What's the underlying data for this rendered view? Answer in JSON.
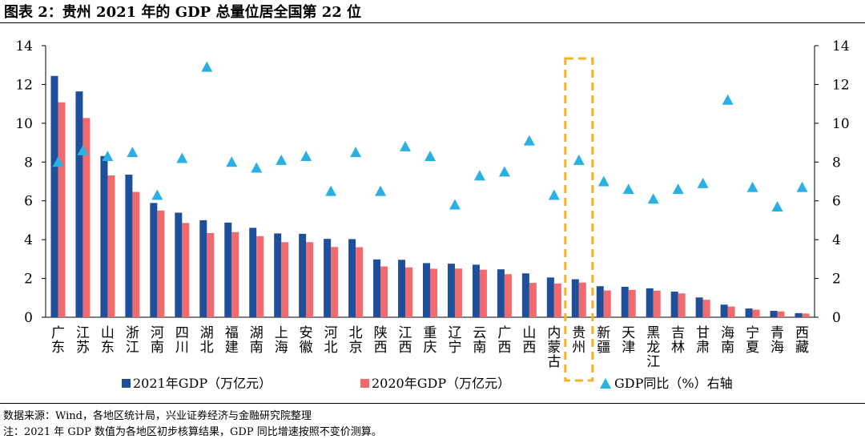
{
  "title": "图表 2：贵州 2021 年的 GDP 总量位居全国第 22 位",
  "source_text": "数据来源：Wind，各地区统计局，兴业证券经济与金融研究院整理",
  "note_text": "注：2021 年 GDP 数值为各地区初步核算结果，GDP 同比增速按照不变价测算。",
  "colors": {
    "gdp2021": "#1F4E9A",
    "gdp2020": "#F06A6E",
    "growth": "#2AB0E3",
    "highlight": "#F5B323"
  },
  "chart_data": {
    "type": "bar",
    "categories": [
      "广东",
      "江苏",
      "山东",
      "浙江",
      "河南",
      "四川",
      "湖北",
      "福建",
      "湖南",
      "上海",
      "安徽",
      "河北",
      "北京",
      "陕西",
      "江西",
      "重庆",
      "辽宁",
      "云南",
      "广西",
      "山西",
      "内蒙古",
      "贵州",
      "新疆",
      "天津",
      "黑龙江",
      "吉林",
      "甘肃",
      "海南",
      "宁夏",
      "青海",
      "西藏"
    ],
    "highlight_category": "贵州",
    "series": [
      {
        "name": "2021年GDP（万亿元）",
        "type": "bar",
        "axis": "left",
        "values": [
          12.44,
          11.64,
          8.31,
          7.35,
          5.89,
          5.39,
          5.0,
          4.88,
          4.61,
          4.32,
          4.3,
          4.04,
          4.03,
          2.98,
          2.96,
          2.79,
          2.76,
          2.71,
          2.47,
          2.26,
          2.05,
          1.96,
          1.6,
          1.57,
          1.49,
          1.32,
          1.02,
          0.65,
          0.45,
          0.33,
          0.21
        ]
      },
      {
        "name": "2020年GDP（万亿元）",
        "type": "bar",
        "axis": "left",
        "values": [
          11.08,
          10.27,
          7.31,
          6.46,
          5.5,
          4.86,
          4.34,
          4.39,
          4.18,
          3.87,
          3.87,
          3.62,
          3.61,
          2.62,
          2.57,
          2.5,
          2.51,
          2.45,
          2.22,
          1.77,
          1.74,
          1.79,
          1.38,
          1.41,
          1.37,
          1.23,
          0.9,
          0.55,
          0.39,
          0.3,
          0.19
        ]
      },
      {
        "name": "GDP同比（%）右轴",
        "type": "scatter",
        "axis": "right",
        "values": [
          8.0,
          8.6,
          8.3,
          8.5,
          6.3,
          8.2,
          12.9,
          8.0,
          7.7,
          8.1,
          8.3,
          6.5,
          8.5,
          6.5,
          8.8,
          8.3,
          5.8,
          7.3,
          7.5,
          9.1,
          6.3,
          8.1,
          7.0,
          6.6,
          6.1,
          6.6,
          6.9,
          11.2,
          6.7,
          5.7,
          6.7
        ]
      }
    ],
    "ylim_left": [
      0,
      14
    ],
    "ylim_right": [
      0,
      14
    ],
    "yticks": [
      0,
      2,
      4,
      6,
      8,
      10,
      12,
      14
    ],
    "legend": [
      "2021年GDP（万亿元）",
      "2020年GDP（万亿元）",
      "GDP同比（%）右轴"
    ],
    "legend_position": "bottom"
  }
}
